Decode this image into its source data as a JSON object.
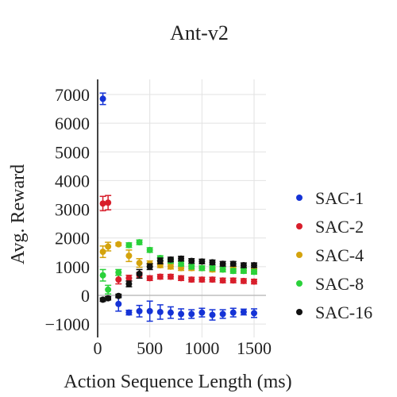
{
  "chart_data": {
    "type": "scatter",
    "title": "Ant-v2",
    "xlabel": "Action Sequence Length (ms)",
    "ylabel": "Avg. Reward",
    "xlim": [
      0,
      1600
    ],
    "ylim": [
      -1200,
      7500
    ],
    "xticks": [
      0,
      500,
      1000,
      1500
    ],
    "yticks": [
      -1000,
      0,
      1000,
      2000,
      3000,
      4000,
      5000,
      6000,
      7000
    ],
    "xtick_labels": [
      "0",
      "500",
      "1000",
      "1500"
    ],
    "ytick_labels": [
      "−1000",
      "0",
      "1000",
      "2000",
      "3000",
      "4000",
      "5000",
      "6000",
      "7000"
    ],
    "grid": true,
    "legend_position": "right",
    "series": [
      {
        "name": "SAC-1",
        "color": "#1533d6",
        "x": [
          50,
          200,
          300,
          400,
          500,
          600,
          700,
          800,
          900,
          1000,
          1100,
          1200,
          1300,
          1400,
          1500
        ],
        "y": [
          6850,
          -300,
          -600,
          -550,
          -550,
          -580,
          -600,
          -650,
          -650,
          -600,
          -680,
          -650,
          -600,
          -580,
          -620
        ],
        "err": [
          200,
          250,
          80,
          200,
          350,
          250,
          200,
          180,
          150,
          150,
          180,
          150,
          150,
          100,
          150
        ]
      },
      {
        "name": "SAC-2",
        "color": "#d81e2b",
        "x": [
          50,
          100,
          200,
          300,
          400,
          500,
          600,
          700,
          800,
          900,
          1000,
          1100,
          1200,
          1300,
          1400,
          1500
        ],
        "y": [
          3200,
          3230,
          550,
          600,
          700,
          600,
          650,
          650,
          600,
          550,
          550,
          550,
          520,
          520,
          500,
          480
        ],
        "err": [
          250,
          250,
          150,
          100,
          100,
          80,
          80,
          80,
          80,
          80,
          80,
          80,
          80,
          80,
          80,
          80
        ]
      },
      {
        "name": "SAC-4",
        "color": "#d4a30d",
        "x": [
          50,
          100,
          200,
          300,
          400,
          500,
          600,
          700,
          800,
          900,
          1000,
          1100,
          1200,
          1300,
          1400,
          1500
        ],
        "y": [
          1520,
          1700,
          1780,
          1380,
          1130,
          1100,
          1050,
          1000,
          950,
          950,
          950,
          900,
          900,
          900,
          880,
          850
        ],
        "err": [
          200,
          150,
          50,
          200,
          150,
          100,
          80,
          80,
          80,
          80,
          80,
          80,
          80,
          80,
          80,
          80
        ]
      },
      {
        "name": "SAC-8",
        "color": "#2ad13a",
        "x": [
          50,
          100,
          200,
          300,
          400,
          500,
          600,
          700,
          800,
          900,
          1000,
          1100,
          1200,
          1300,
          1400,
          1500
        ],
        "y": [
          700,
          200,
          800,
          1750,
          1850,
          1580,
          1300,
          1200,
          1100,
          1000,
          950,
          950,
          900,
          850,
          850,
          820
        ],
        "err": [
          200,
          150,
          100,
          80,
          80,
          80,
          80,
          80,
          80,
          80,
          80,
          80,
          80,
          80,
          80,
          80
        ]
      },
      {
        "name": "SAC-16",
        "color": "#111111",
        "x": [
          50,
          100,
          200,
          300,
          400,
          500,
          600,
          700,
          800,
          900,
          1000,
          1100,
          1200,
          1300,
          1400,
          1500
        ],
        "y": [
          -150,
          -100,
          -20,
          400,
          750,
          1000,
          1200,
          1250,
          1280,
          1200,
          1180,
          1150,
          1100,
          1100,
          1050,
          1050
        ],
        "err": [
          60,
          60,
          60,
          100,
          150,
          100,
          100,
          80,
          80,
          80,
          80,
          80,
          80,
          80,
          80,
          80
        ]
      }
    ]
  }
}
